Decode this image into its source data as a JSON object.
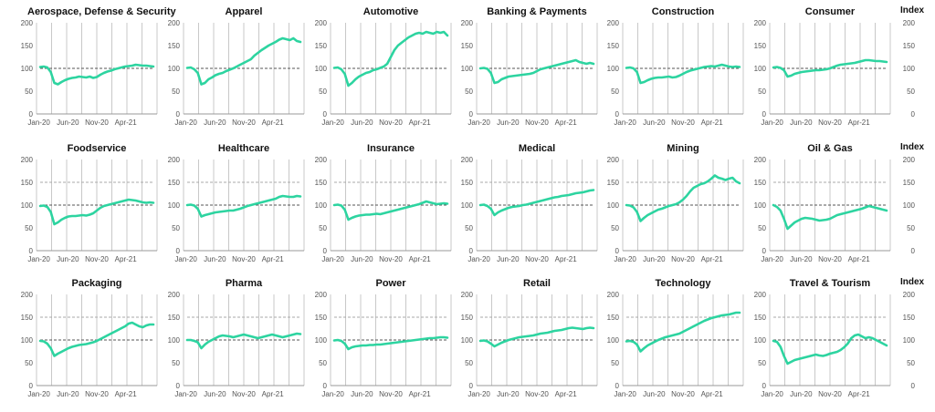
{
  "colors": {
    "series": "#2dd4a0",
    "grid": "#c8c8c8",
    "axis": "#999999",
    "refline": "#555555",
    "refline2": "#aaaaaa",
    "text": "#555555"
  },
  "index_label": "Index",
  "chart_data": [
    {
      "type": "line",
      "title": "Aerospace, Defense & Security",
      "ylim": [
        0,
        200
      ],
      "yticks": [
        0,
        50,
        100,
        150,
        200
      ],
      "xticks": [
        "Jan-20",
        "Jun-20",
        "Nov-20",
        "Apr-21"
      ],
      "reference_lines": [
        100
      ],
      "series": [
        {
          "values": [
            103,
            104,
            102,
            92,
            68,
            65,
            70,
            74,
            77,
            79,
            80,
            82,
            81,
            80,
            82,
            79,
            81,
            86,
            90,
            93,
            95,
            98,
            100,
            102,
            104,
            105,
            106,
            108,
            107,
            106,
            106,
            105,
            104
          ]
        }
      ]
    },
    {
      "type": "line",
      "title": "Apparel",
      "ylim": [
        0,
        200
      ],
      "yticks": [
        0,
        50,
        100,
        150,
        200
      ],
      "xticks": [
        "Jan-20",
        "Jun-20",
        "Nov-20",
        "Apr-21"
      ],
      "reference_lines": [
        100
      ],
      "series": [
        {
          "values": [
            101,
            102,
            98,
            90,
            65,
            68,
            76,
            80,
            85,
            88,
            90,
            94,
            97,
            100,
            104,
            108,
            112,
            116,
            120,
            128,
            134,
            140,
            145,
            150,
            154,
            158,
            163,
            166,
            164,
            162,
            166,
            160,
            158
          ]
        }
      ]
    },
    {
      "type": "line",
      "title": "Automotive",
      "ylim": [
        0,
        200
      ],
      "yticks": [
        0,
        50,
        100,
        150,
        200
      ],
      "xticks": [
        "Jan-20",
        "Jun-20",
        "Nov-20",
        "Apr-21"
      ],
      "reference_lines": [
        100
      ],
      "series": [
        {
          "values": [
            101,
            102,
            98,
            88,
            62,
            68,
            76,
            82,
            86,
            90,
            92,
            96,
            98,
            101,
            104,
            110,
            125,
            140,
            150,
            156,
            162,
            168,
            172,
            176,
            178,
            176,
            180,
            178,
            176,
            180,
            178,
            180,
            172
          ]
        }
      ]
    },
    {
      "type": "line",
      "title": "Banking & Payments",
      "ylim": [
        0,
        200
      ],
      "yticks": [
        0,
        50,
        100,
        150,
        200
      ],
      "xticks": [
        "Jan-20",
        "Jun-20",
        "Nov-20",
        "Apr-21"
      ],
      "reference_lines": [
        100
      ],
      "series": [
        {
          "values": [
            100,
            101,
            99,
            90,
            68,
            70,
            76,
            79,
            82,
            83,
            84,
            85,
            86,
            87,
            88,
            90,
            94,
            98,
            100,
            102,
            104,
            106,
            108,
            110,
            112,
            114,
            116,
            118,
            114,
            112,
            110,
            112,
            110
          ]
        }
      ]
    },
    {
      "type": "line",
      "title": "Construction",
      "ylim": [
        0,
        200
      ],
      "yticks": [
        0,
        50,
        100,
        150,
        200
      ],
      "xticks": [
        "Jan-20",
        "Jun-20",
        "Nov-20",
        "Apr-21"
      ],
      "reference_lines": [
        100
      ],
      "series": [
        {
          "values": [
            101,
            102,
            100,
            92,
            68,
            70,
            74,
            77,
            79,
            80,
            80,
            81,
            82,
            80,
            81,
            84,
            88,
            92,
            95,
            97,
            99,
            101,
            103,
            104,
            105,
            104,
            106,
            108,
            106,
            104,
            103,
            104,
            103
          ]
        }
      ]
    },
    {
      "type": "line",
      "title": "Consumer",
      "ylim": [
        0,
        200
      ],
      "yticks": [
        0,
        50,
        100,
        150,
        200
      ],
      "xticks": [
        "Jan-20",
        "Jun-20",
        "Nov-20",
        "Apr-21"
      ],
      "reference_lines": [
        100
      ],
      "series": [
        {
          "values": [
            102,
            103,
            101,
            96,
            82,
            84,
            88,
            90,
            92,
            93,
            94,
            95,
            96,
            96,
            97,
            98,
            100,
            103,
            106,
            108,
            109,
            110,
            111,
            112,
            114,
            116,
            118,
            118,
            117,
            116,
            116,
            115,
            114
          ]
        }
      ]
    },
    {
      "type": "line",
      "title": "Foodservice",
      "ylim": [
        0,
        200
      ],
      "yticks": [
        0,
        50,
        100,
        150,
        200
      ],
      "xticks": [
        "Jan-20",
        "Jun-20",
        "Nov-20",
        "Apr-21"
      ],
      "reference_lines": [
        100,
        150
      ],
      "series": [
        {
          "values": [
            98,
            99,
            96,
            85,
            58,
            62,
            68,
            72,
            75,
            76,
            76,
            77,
            78,
            77,
            79,
            82,
            88,
            94,
            98,
            100,
            102,
            104,
            106,
            108,
            110,
            112,
            111,
            110,
            108,
            106,
            105,
            106,
            105
          ]
        }
      ]
    },
    {
      "type": "line",
      "title": "Healthcare",
      "ylim": [
        0,
        200
      ],
      "yticks": [
        0,
        50,
        100,
        150,
        200
      ],
      "xticks": [
        "Jan-20",
        "Jun-20",
        "Nov-20",
        "Apr-21"
      ],
      "reference_lines": [
        100,
        150
      ],
      "series": [
        {
          "values": [
            100,
            101,
            99,
            92,
            75,
            78,
            80,
            82,
            84,
            85,
            86,
            87,
            88,
            88,
            90,
            92,
            95,
            98,
            100,
            102,
            104,
            106,
            108,
            110,
            112,
            114,
            118,
            120,
            119,
            118,
            118,
            120,
            119
          ]
        }
      ]
    },
    {
      "type": "line",
      "title": "Insurance",
      "ylim": [
        0,
        200
      ],
      "yticks": [
        0,
        50,
        100,
        150,
        200
      ],
      "xticks": [
        "Jan-20",
        "Jun-20",
        "Nov-20",
        "Apr-21"
      ],
      "reference_lines": [
        100,
        150
      ],
      "series": [
        {
          "values": [
            100,
            101,
            99,
            90,
            68,
            72,
            75,
            77,
            78,
            79,
            79,
            80,
            81,
            80,
            82,
            84,
            86,
            88,
            90,
            92,
            94,
            96,
            98,
            100,
            102,
            105,
            108,
            106,
            104,
            102,
            103,
            104,
            103
          ]
        }
      ]
    },
    {
      "type": "line",
      "title": "Medical",
      "ylim": [
        0,
        200
      ],
      "yticks": [
        0,
        50,
        100,
        150,
        200
      ],
      "xticks": [
        "Jan-20",
        "Jun-20",
        "Nov-20",
        "Apr-21"
      ],
      "reference_lines": [
        100,
        150
      ],
      "series": [
        {
          "values": [
            100,
            101,
            98,
            92,
            78,
            84,
            88,
            91,
            94,
            96,
            97,
            98,
            100,
            101,
            103,
            105,
            107,
            109,
            111,
            113,
            115,
            117,
            118,
            120,
            121,
            122,
            124,
            126,
            127,
            128,
            130,
            132,
            133
          ]
        }
      ]
    },
    {
      "type": "line",
      "title": "Mining",
      "ylim": [
        0,
        200
      ],
      "yticks": [
        0,
        50,
        100,
        150,
        200
      ],
      "xticks": [
        "Jan-20",
        "Jun-20",
        "Nov-20",
        "Apr-21"
      ],
      "reference_lines": [
        100,
        150
      ],
      "series": [
        {
          "values": [
            100,
            99,
            95,
            85,
            65,
            72,
            78,
            82,
            86,
            90,
            92,
            95,
            98,
            100,
            102,
            106,
            112,
            120,
            130,
            138,
            142,
            146,
            148,
            152,
            158,
            165,
            160,
            158,
            155,
            158,
            160,
            152,
            148
          ]
        }
      ]
    },
    {
      "type": "line",
      "title": "Oil & Gas",
      "ylim": [
        0,
        200
      ],
      "yticks": [
        0,
        50,
        100,
        150,
        200
      ],
      "xticks": [
        "Jan-20",
        "Jun-20",
        "Nov-20",
        "Apr-21"
      ],
      "reference_lines": [
        100,
        150
      ],
      "series": [
        {
          "values": [
            100,
            96,
            88,
            70,
            48,
            55,
            62,
            66,
            70,
            72,
            71,
            70,
            68,
            66,
            67,
            68,
            70,
            74,
            78,
            80,
            82,
            84,
            86,
            88,
            90,
            92,
            95,
            98,
            96,
            94,
            92,
            90,
            88
          ]
        }
      ]
    },
    {
      "type": "line",
      "title": "Packaging",
      "ylim": [
        0,
        200
      ],
      "yticks": [
        0,
        50,
        100,
        150,
        200
      ],
      "xticks": [
        "Jan-20",
        "Jun-20",
        "Nov-20",
        "Apr-21"
      ],
      "reference_lines": [
        100,
        150
      ],
      "series": [
        {
          "values": [
            98,
            97,
            92,
            82,
            65,
            70,
            74,
            78,
            82,
            85,
            87,
            89,
            90,
            91,
            93,
            95,
            98,
            102,
            106,
            110,
            114,
            118,
            122,
            126,
            130,
            136,
            138,
            134,
            130,
            128,
            132,
            134,
            134
          ]
        }
      ]
    },
    {
      "type": "line",
      "title": "Pharma",
      "ylim": [
        0,
        200
      ],
      "yticks": [
        0,
        50,
        100,
        150,
        200
      ],
      "xticks": [
        "Jan-20",
        "Jun-20",
        "Nov-20",
        "Apr-21"
      ],
      "reference_lines": [
        100,
        150
      ],
      "series": [
        {
          "values": [
            100,
            100,
            98,
            95,
            82,
            90,
            96,
            100,
            104,
            108,
            110,
            109,
            108,
            106,
            108,
            110,
            112,
            110,
            108,
            106,
            104,
            106,
            108,
            110,
            112,
            110,
            108,
            106,
            108,
            110,
            112,
            114,
            113
          ]
        }
      ]
    },
    {
      "type": "line",
      "title": "Power",
      "ylim": [
        0,
        200
      ],
      "yticks": [
        0,
        50,
        100,
        150,
        200
      ],
      "xticks": [
        "Jan-20",
        "Jun-20",
        "Nov-20",
        "Apr-21"
      ],
      "reference_lines": [
        100,
        150
      ],
      "series": [
        {
          "values": [
            99,
            100,
            98,
            92,
            80,
            84,
            86,
            87,
            88,
            88,
            89,
            89,
            90,
            90,
            91,
            92,
            93,
            94,
            95,
            96,
            97,
            98,
            99,
            100,
            101,
            102,
            103,
            104,
            104,
            105,
            106,
            106,
            105
          ]
        }
      ]
    },
    {
      "type": "line",
      "title": "Retail",
      "ylim": [
        0,
        200
      ],
      "yticks": [
        0,
        50,
        100,
        150,
        200
      ],
      "xticks": [
        "Jan-20",
        "Jun-20",
        "Nov-20",
        "Apr-21"
      ],
      "reference_lines": [
        100,
        150
      ],
      "series": [
        {
          "values": [
            98,
            99,
            97,
            92,
            86,
            90,
            94,
            97,
            100,
            102,
            104,
            106,
            107,
            108,
            109,
            110,
            112,
            114,
            115,
            116,
            118,
            120,
            121,
            122,
            124,
            126,
            127,
            126,
            125,
            124,
            126,
            127,
            126
          ]
        }
      ]
    },
    {
      "type": "line",
      "title": "Technology",
      "ylim": [
        0,
        200
      ],
      "yticks": [
        0,
        50,
        100,
        150,
        200
      ],
      "xticks": [
        "Jan-20",
        "Jun-20",
        "Nov-20",
        "Apr-21"
      ],
      "reference_lines": [
        100,
        150
      ],
      "series": [
        {
          "values": [
            97,
            98,
            96,
            90,
            75,
            82,
            88,
            92,
            96,
            100,
            103,
            106,
            108,
            110,
            112,
            114,
            118,
            122,
            126,
            130,
            134,
            138,
            142,
            145,
            148,
            150,
            152,
            154,
            155,
            156,
            158,
            160,
            160
          ]
        }
      ]
    },
    {
      "type": "line",
      "title": "Travel & Tourism",
      "ylim": [
        0,
        200
      ],
      "yticks": [
        0,
        50,
        100,
        150,
        200
      ],
      "xticks": [
        "Jan-20",
        "Jun-20",
        "Nov-20",
        "Apr-21"
      ],
      "reference_lines": [
        100,
        150
      ],
      "series": [
        {
          "values": [
            98,
            96,
            85,
            65,
            48,
            52,
            56,
            58,
            60,
            62,
            64,
            66,
            68,
            66,
            65,
            67,
            70,
            72,
            74,
            78,
            84,
            92,
            104,
            110,
            112,
            108,
            104,
            106,
            104,
            100,
            96,
            92,
            88
          ]
        }
      ]
    }
  ]
}
